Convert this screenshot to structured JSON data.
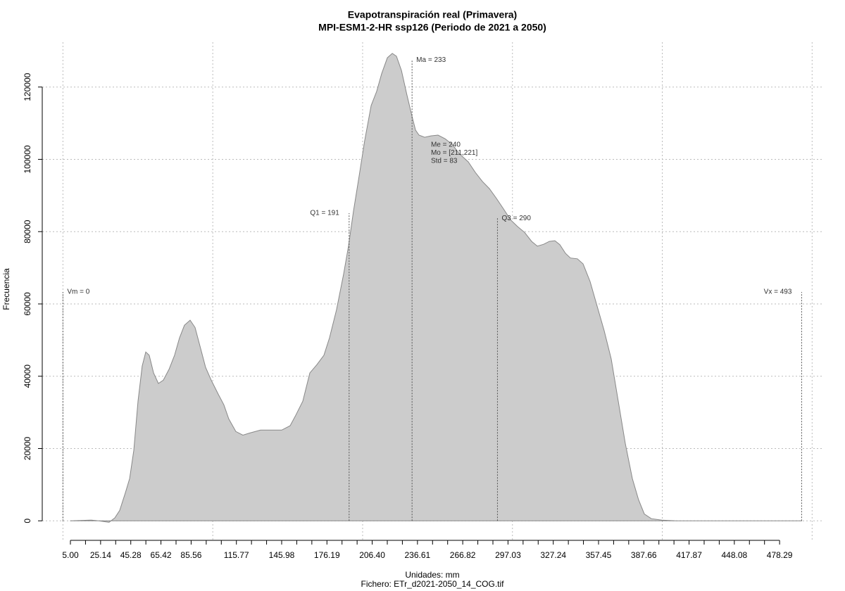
{
  "chart_data": {
    "type": "area",
    "title": "Evapotranspiración real (Primavera)",
    "subtitle": "MPI-ESM1-2-HR ssp126 (Periodo de 2021 a 2050)",
    "xlabel": "Unidades: mm",
    "caption": "Fichero: ETr_d2021-2050_14_COG.tif",
    "ylabel": "Frecuencia",
    "color": "#cccccc",
    "line_color": "#888888",
    "grid": true,
    "xlim": [
      -13.8,
      506.9
    ],
    "ylim": [
      -5400,
      132400
    ],
    "yticks": [
      0,
      20000,
      40000,
      60000,
      80000,
      100000,
      120000
    ],
    "xgrid": [
      0,
      100,
      200,
      300,
      400,
      500
    ],
    "xticks": [
      {
        "value": 5,
        "label": "5.00"
      },
      {
        "value": 25.14,
        "label": "25.14"
      },
      {
        "value": 45.28,
        "label": "45.28"
      },
      {
        "value": 65.42,
        "label": "65.42"
      },
      {
        "value": 85.56,
        "label": "85.56"
      },
      {
        "value": 115.77,
        "label": "115.77"
      },
      {
        "value": 145.98,
        "label": "145.98"
      },
      {
        "value": 176.19,
        "label": "176.19"
      },
      {
        "value": 206.4,
        "label": "206.40"
      },
      {
        "value": 236.61,
        "label": "236.61"
      },
      {
        "value": 266.82,
        "label": "266.82"
      },
      {
        "value": 297.03,
        "label": "297.03"
      },
      {
        "value": 327.24,
        "label": "327.24"
      },
      {
        "value": 357.45,
        "label": "357.45"
      },
      {
        "value": 387.66,
        "label": "387.66"
      },
      {
        "value": 417.87,
        "label": "417.87"
      },
      {
        "value": 448.08,
        "label": "448.08"
      },
      {
        "value": 478.29,
        "label": "478.29"
      }
    ],
    "xminor_ticks": [
      15.07,
      35.21,
      55.35,
      75.49,
      95.63,
      105.7,
      125.84,
      135.91,
      156.05,
      166.12,
      186.26,
      196.33,
      216.47,
      226.54,
      246.68,
      256.75,
      276.89,
      286.96,
      307.1,
      317.17,
      337.31,
      347.38,
      367.52,
      377.59,
      397.73,
      407.8,
      427.94,
      438.01,
      458.15,
      468.22
    ],
    "x": [
      5.0,
      19.1,
      23.8,
      30.8,
      34.6,
      37.9,
      41.7,
      44.5,
      47.3,
      50.1,
      52.9,
      55.3,
      57.6,
      60.5,
      63.7,
      67.0,
      70.8,
      74.5,
      77.8,
      81.1,
      84.9,
      88.2,
      91.9,
      95.2,
      99.0,
      103.7,
      107.4,
      110.7,
      115.4,
      120.1,
      124.8,
      131.9,
      138.9,
      146.0,
      151.6,
      155.4,
      160.1,
      164.8,
      169.5,
      174.2,
      177.9,
      182.6,
      187.3,
      190.6,
      193.9,
      197.7,
      201.4,
      205.7,
      209.4,
      212.7,
      216.5,
      219.8,
      222.6,
      225.9,
      229.6,
      232.9,
      235.3,
      237.6,
      241.4,
      245.6,
      250.3,
      255.0,
      259.7,
      264.4,
      270.5,
      275.2,
      279.9,
      284.6,
      289.3,
      294.0,
      298.7,
      303.4,
      308.1,
      312.8,
      316.6,
      320.8,
      324.6,
      328.3,
      331.6,
      335.4,
      338.7,
      343.3,
      347.1,
      351.8,
      356.5,
      361.2,
      365.9,
      370.6,
      375.3,
      380.0,
      384.2,
      388.0,
      392.7,
      399.7,
      409.1,
      493.0
    ],
    "values": [
      0,
      200,
      0,
      -400,
      800,
      2900,
      7800,
      11700,
      19500,
      33100,
      42800,
      46700,
      45800,
      40900,
      38000,
      38900,
      41900,
      45800,
      50600,
      54100,
      55500,
      53500,
      47700,
      42500,
      38900,
      35000,
      32100,
      28200,
      24700,
      23700,
      24300,
      25100,
      25100,
      25100,
      26300,
      29200,
      33100,
      40900,
      43200,
      45800,
      50600,
      58400,
      68200,
      76000,
      85700,
      95500,
      105200,
      114900,
      118800,
      123700,
      128100,
      129300,
      128500,
      124600,
      117800,
      112000,
      108100,
      106700,
      106100,
      106500,
      106700,
      105700,
      104200,
      101600,
      99300,
      96400,
      93900,
      91900,
      89200,
      86300,
      83300,
      81400,
      79800,
      77300,
      76000,
      76500,
      77300,
      77500,
      76400,
      74000,
      72700,
      72500,
      71100,
      66200,
      59400,
      52600,
      44800,
      33100,
      21400,
      11700,
      5800,
      1900,
      600,
      200,
      0,
      0
    ],
    "annotations": [
      {
        "label": "Vm = 0",
        "x": 0,
        "y": 63300,
        "side": "right"
      },
      {
        "label": "Q1 = 191",
        "x": 191,
        "y": 85100,
        "side": "left"
      },
      {
        "label": "Ma = 233",
        "x": 233,
        "y": 127500,
        "side": "right"
      },
      {
        "label": "Q3 = 290",
        "x": 290,
        "y": 83700,
        "side": "right"
      },
      {
        "label": "Vx = 493",
        "x": 493,
        "y": 63300,
        "side": "left"
      }
    ],
    "stats": {
      "x": 245.6,
      "y": 104000,
      "lines": [
        "Me = 240",
        "Mo = [211,221]",
        "Std = 83"
      ]
    }
  }
}
